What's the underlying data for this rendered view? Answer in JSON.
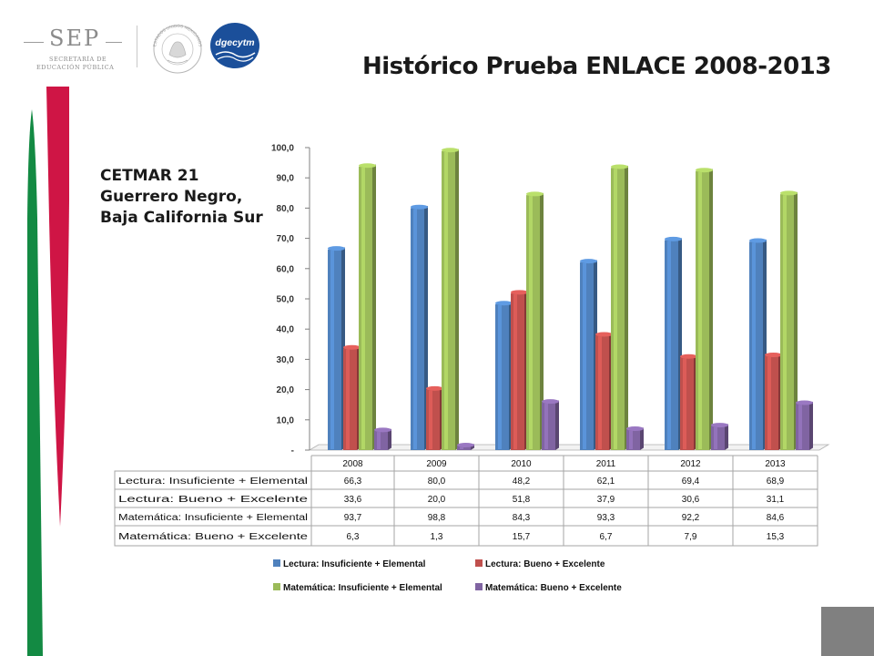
{
  "header": {
    "sep_logo_text": "SEP",
    "sep_line1": "SECRETARÍA DE",
    "sep_line2": "EDUCACIÓN PÚBLICA",
    "seal_text": "ESTADOS UNIDOS MEXICANOS",
    "dgecytm_logo_text": "dgecytm"
  },
  "colors": {
    "accent_green": "#138a43",
    "accent_red": "#cf1545",
    "gray_block": "#808080"
  },
  "chart_data": {
    "type": "bar",
    "title": "Histórico Prueba ENLACE 2008-2013",
    "subtitle": [
      "CETMAR 21",
      "Guerrero Negro,",
      "Baja California Sur"
    ],
    "categories": [
      "2008",
      "2009",
      "2010",
      "2011",
      "2012",
      "2013"
    ],
    "ylim": [
      0,
      100
    ],
    "yticks": [
      "-",
      "10,0",
      "20,0",
      "30,0",
      "40,0",
      "50,0",
      "60,0",
      "70,0",
      "80,0",
      "90,0",
      "100,0"
    ],
    "grid": false,
    "legend_position": "bottom",
    "series": [
      {
        "name": "Lectura: Insuficiente + Elemental",
        "color": "#4f81bd",
        "values": [
          66.3,
          80.0,
          48.2,
          62.1,
          69.4,
          68.9
        ],
        "labels": [
          "66,3",
          "80,0",
          "48,2",
          "62,1",
          "69,4",
          "68,9"
        ]
      },
      {
        "name": "Lectura: Bueno + Excelente",
        "color": "#c0504d",
        "values": [
          33.6,
          20.0,
          51.8,
          37.9,
          30.6,
          31.1
        ],
        "labels": [
          "33,6",
          "20,0",
          "51,8",
          "37,9",
          "30,6",
          "31,1"
        ]
      },
      {
        "name": "Matemática: Insuficiente + Elemental",
        "color": "#9bbb59",
        "values": [
          93.7,
          98.8,
          84.3,
          93.3,
          92.2,
          84.6
        ],
        "labels": [
          "93,7",
          "98,8",
          "84,3",
          "93,3",
          "92,2",
          "84,6"
        ]
      },
      {
        "name": "Matemática: Bueno + Excelente",
        "color": "#8064a2",
        "values": [
          6.3,
          1.3,
          15.7,
          6.7,
          7.9,
          15.3
        ],
        "labels": [
          "6,3",
          "1,3",
          "15,7",
          "6,7",
          "7,9",
          "15,3"
        ]
      }
    ]
  }
}
